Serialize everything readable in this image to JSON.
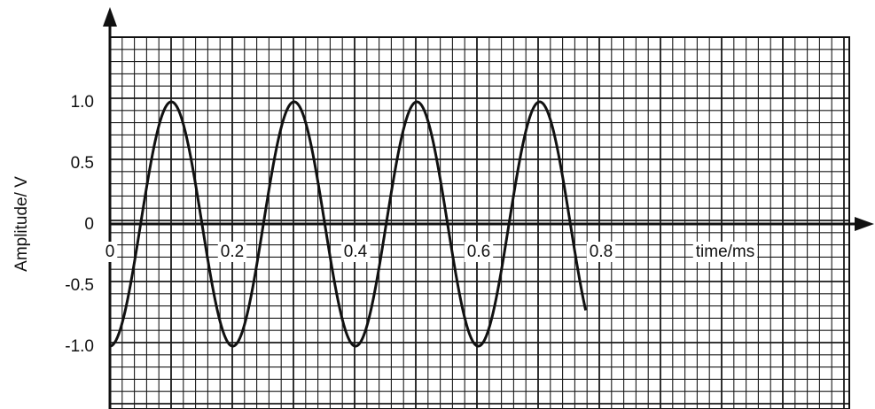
{
  "chart_data": {
    "type": "line",
    "xlabel": "time/ms",
    "ylabel": "Amplitude/ V",
    "x_ticks": [
      "0",
      "0.2",
      "0.4",
      "0.6",
      "0.8"
    ],
    "y_ticks": [
      "1.0",
      "0.5",
      "0",
      "-0.5",
      "-1.0"
    ],
    "xlim": [
      0,
      0.98
    ],
    "ylim": [
      -1.5,
      1.5
    ],
    "grid": true,
    "series": [
      {
        "color": "#111111",
        "x": [
          0.0,
          0.025,
          0.05,
          0.075,
          0.1,
          0.125,
          0.15,
          0.175,
          0.2,
          0.225,
          0.25,
          0.275,
          0.3,
          0.325,
          0.35,
          0.375,
          0.4,
          0.425,
          0.45,
          0.475,
          0.5,
          0.525,
          0.55,
          0.575,
          0.6,
          0.625,
          0.65,
          0.675,
          0.7,
          0.725,
          0.75,
          0.775
        ],
        "y": [
          -1.0,
          -0.71,
          0.0,
          0.71,
          1.0,
          0.71,
          0.0,
          -0.71,
          -1.0,
          -0.71,
          0.0,
          0.71,
          1.0,
          0.71,
          0.0,
          -0.71,
          -1.0,
          -0.71,
          0.0,
          0.71,
          1.0,
          0.71,
          0.0,
          -0.71,
          -1.0,
          -0.71,
          0.0,
          0.71,
          1.0,
          0.71,
          0.0,
          -0.71
        ]
      }
    ]
  }
}
